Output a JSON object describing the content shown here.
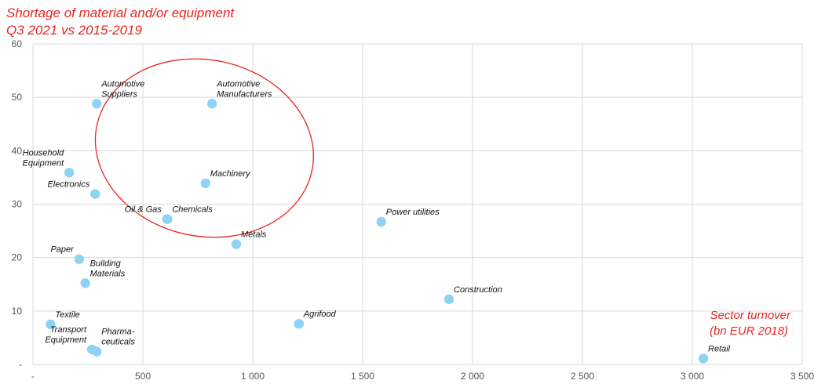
{
  "chart_data": {
    "type": "scatter",
    "title_lines": [
      "Shortage of material and/or equipment",
      "Q3 2021 vs 2015-2019"
    ],
    "xlabel_lines": [
      "Sector turnover",
      "(bn EUR 2018)"
    ],
    "ylabel": "",
    "xlim": [
      0,
      3500
    ],
    "ylim": [
      0,
      60
    ],
    "grid": true,
    "x_ticks": [
      {
        "value": 0,
        "label": "-"
      },
      {
        "value": 500,
        "label": "500"
      },
      {
        "value": 1000,
        "label": "1 000"
      },
      {
        "value": 1500,
        "label": "1 500"
      },
      {
        "value": 2000,
        "label": "2 000"
      },
      {
        "value": 2500,
        "label": "2 500"
      },
      {
        "value": 3000,
        "label": "3 000"
      },
      {
        "value": 3500,
        "label": "3 500"
      }
    ],
    "y_ticks": [
      {
        "value": 0,
        "label": "-"
      },
      {
        "value": 10,
        "label": "10"
      },
      {
        "value": 20,
        "label": "20"
      },
      {
        "value": 30,
        "label": "30"
      },
      {
        "value": 40,
        "label": "40"
      },
      {
        "value": 50,
        "label": "50"
      },
      {
        "value": 60,
        "label": "60"
      }
    ],
    "marker_color": "#8fd3f4",
    "highlight_color": "#e52521",
    "highlight_ellipse": {
      "center": [
        780,
        40.5
      ],
      "rx": 1000,
      "ry": 33
    },
    "points": [
      {
        "label": [
          "Automotive",
          "Suppliers"
        ],
        "x": 290,
        "y": 48.8,
        "anchor": "start"
      },
      {
        "label": [
          "Automotive",
          "Manufacturers"
        ],
        "x": 815,
        "y": 48.8,
        "anchor": "start"
      },
      {
        "label": [
          "Household",
          "Equipment"
        ],
        "x": 165,
        "y": 35.9,
        "anchor": "end"
      },
      {
        "label": [
          "Machinery"
        ],
        "x": 785,
        "y": 33.9,
        "anchor": "start"
      },
      {
        "label": [
          "Electronics"
        ],
        "x": 283,
        "y": 31.9,
        "anchor": "end"
      },
      {
        "label": [
          "Oil & Gas"
        ],
        "x": 610,
        "y": 27.2,
        "anchor": "end"
      },
      {
        "label": [
          "Chemicals"
        ],
        "x": 612,
        "y": 27.2,
        "anchor": "start"
      },
      {
        "label": [
          "Power utilities"
        ],
        "x": 1585,
        "y": 26.7,
        "anchor": "start"
      },
      {
        "label": [
          "Metals"
        ],
        "x": 925,
        "y": 22.5,
        "anchor": "start"
      },
      {
        "label": [
          "Paper"
        ],
        "x": 210,
        "y": 19.7,
        "anchor": "end"
      },
      {
        "label": [
          "Building",
          "Materials"
        ],
        "x": 238,
        "y": 15.2,
        "anchor": "start"
      },
      {
        "label": [
          "Construction"
        ],
        "x": 1893,
        "y": 12.2,
        "anchor": "start"
      },
      {
        "label": [
          "Agrifood"
        ],
        "x": 1210,
        "y": 7.6,
        "anchor": "start"
      },
      {
        "label": [
          "Textile"
        ],
        "x": 80,
        "y": 7.5,
        "anchor": "start"
      },
      {
        "label": [
          "Transport",
          "Equipment"
        ],
        "x": 268,
        "y": 2.8,
        "anchor": "end"
      },
      {
        "label": [
          "Pharma-",
          "ceuticals"
        ],
        "x": 290,
        "y": 2.4,
        "anchor": "start"
      },
      {
        "label": [
          "Retail"
        ],
        "x": 3050,
        "y": 1.1,
        "anchor": "start"
      }
    ]
  }
}
